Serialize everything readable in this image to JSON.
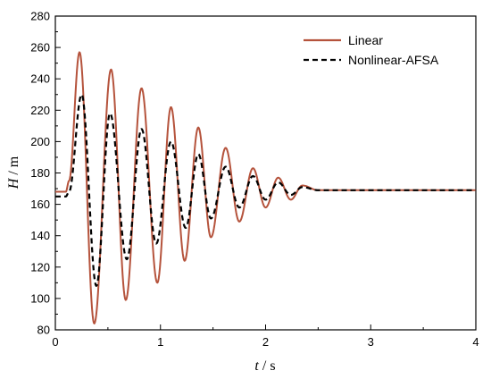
{
  "chart_data": {
    "type": "line",
    "title": "",
    "xlabel": {
      "var": "t",
      "unit": "s"
    },
    "ylabel": {
      "var": "H",
      "unit": "m"
    },
    "xlim": [
      0,
      4
    ],
    "ylim": [
      80,
      280
    ],
    "xticks": [
      "0",
      "1",
      "2",
      "3",
      "4"
    ],
    "yticks": [
      "80",
      "100",
      "120",
      "140",
      "160",
      "180",
      "200",
      "220",
      "240",
      "260",
      "280"
    ],
    "grid": false,
    "legend_position": "top-right",
    "series": [
      {
        "name": "Linear",
        "color": "#b5533c",
        "style": "solid",
        "x": [
          0,
          0.1,
          0.13,
          0.23,
          0.37,
          0.53,
          0.67,
          0.82,
          0.97,
          1.1,
          1.23,
          1.36,
          1.48,
          1.62,
          1.75,
          1.88,
          2.0,
          2.12,
          2.24,
          2.35,
          2.5,
          4.0
        ],
        "y": [
          168,
          168,
          175,
          257,
          84,
          246,
          99,
          234,
          110,
          222,
          124,
          209,
          139,
          196,
          149,
          183,
          158,
          177,
          163,
          172,
          169,
          169
        ]
      },
      {
        "name": "Nonlinear-AFSA",
        "color": "#000000",
        "style": "dashed",
        "x": [
          0,
          0.1,
          0.13,
          0.25,
          0.39,
          0.52,
          0.68,
          0.82,
          0.96,
          1.1,
          1.24,
          1.36,
          1.48,
          1.62,
          1.75,
          1.88,
          2.0,
          2.12,
          2.24,
          2.35,
          2.5,
          4.0
        ],
        "y": [
          165,
          165,
          168,
          230,
          108,
          218,
          125,
          208,
          135,
          200,
          145,
          192,
          151,
          184,
          158,
          178,
          163,
          174,
          166,
          171,
          169,
          169
        ]
      }
    ]
  }
}
